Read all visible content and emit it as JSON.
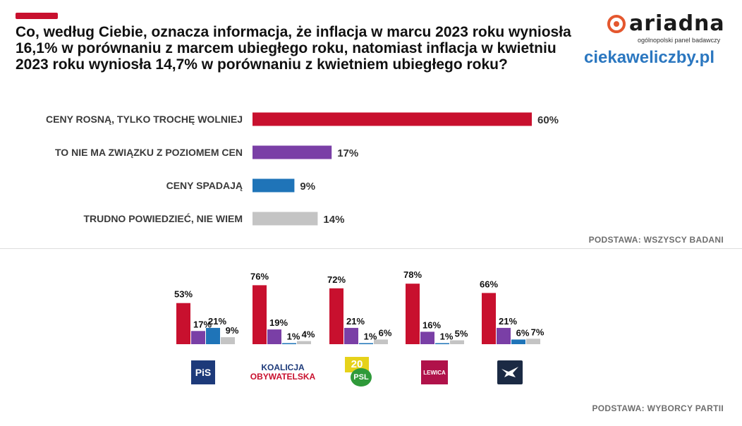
{
  "title": "Co, według Ciebie, oznacza informacja, że inflacja w marcu 2023 roku wyniosła 16,1% w porównaniu z marcem ubiegłego roku, natomiast inflacja w kwietniu 2023 roku wyniosła 14,7% w porównaniu z kwietniem ubiegłego roku?",
  "brand": {
    "name": "ariadna",
    "tagline": "ogólnopolski panel badawczy",
    "site": "ciekaweliczby.pl"
  },
  "colors": {
    "red": "#c8102e",
    "purple": "#7a3fa6",
    "blue": "#1f74b8",
    "gray": "#c4c4c4"
  },
  "chart_data": [
    {
      "type": "bar",
      "orientation": "horizontal",
      "categories": [
        "CENY ROSNĄ, TYLKO TROCHĘ WOLNIEJ",
        "TO NIE MA ZWIĄZKU Z POZIOMEM CEN",
        "CENY SPADAJĄ",
        "TRUDNO POWIEDZIEĆ, NIE WIEM"
      ],
      "values": [
        60,
        17,
        9,
        14
      ],
      "labels": [
        "60%",
        "17%",
        "9%",
        "14%"
      ],
      "colors": [
        "#c8102e",
        "#7a3fa6",
        "#1f74b8",
        "#c4c4c4"
      ],
      "xlim": [
        0,
        100
      ],
      "basis": "PODSTAWA: WSZYSCY BADANI"
    },
    {
      "type": "bar",
      "orientation": "vertical",
      "groups": [
        "PiS",
        "Koalicja Obywatelska",
        "PSL",
        "Lewica",
        "Konfederacja"
      ],
      "series": [
        {
          "name": "CENY ROSNĄ, TYLKO TROCHĘ WOLNIEJ",
          "color": "#c8102e",
          "values": [
            53,
            76,
            72,
            78,
            66
          ],
          "labels": [
            "53%",
            "76%",
            "72%",
            "78%",
            "66%"
          ]
        },
        {
          "name": "TO NIE MA ZWIĄZKU Z POZIOMEM CEN",
          "color": "#7a3fa6",
          "values": [
            17,
            19,
            21,
            16,
            21
          ],
          "labels": [
            "17%",
            "19%",
            "21%",
            "16%",
            "21%"
          ]
        },
        {
          "name": "CENY SPADAJĄ",
          "color": "#1f74b8",
          "values": [
            21,
            1,
            1,
            1,
            6
          ],
          "labels": [
            "21%",
            "1%",
            "1%",
            "1%",
            "6%"
          ]
        },
        {
          "name": "TRUDNO POWIEDZIEĆ, NIE WIEM",
          "color": "#c4c4c4",
          "values": [
            9,
            4,
            6,
            5,
            7
          ],
          "labels": [
            "9%",
            "4%",
            "6%",
            "5%",
            "7%"
          ]
        }
      ],
      "ylim": [
        0,
        100
      ],
      "basis": "PODSTAWA: WYBORCY PARTII"
    }
  ],
  "party_logos": [
    {
      "name": "PiS",
      "text": "PiS",
      "bg": "#1d3a7a"
    },
    {
      "name": "Koalicja Obywatelska",
      "line1": "KOALICJA",
      "line2": "OBYWATELSKA"
    },
    {
      "name": "PSL",
      "text": "PSL",
      "top": "20"
    },
    {
      "name": "Lewica",
      "text": "LEWICA",
      "bg": "#b0124a"
    },
    {
      "name": "Konfederacja",
      "bg": "#1b2a44"
    }
  ]
}
